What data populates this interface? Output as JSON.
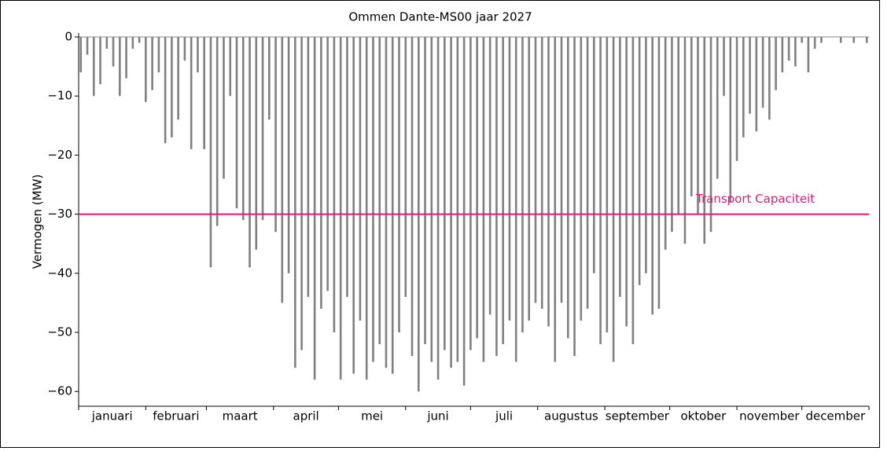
{
  "chart_data": {
    "type": "bar",
    "title": "Ommen Dante-MS00 jaar 2027",
    "y_label": "Vermogen (MW)",
    "color": "#808080",
    "x": [
      1,
      4,
      7,
      10,
      13,
      16,
      19,
      22,
      25,
      28,
      31,
      34,
      37,
      40,
      43,
      46,
      49,
      52,
      55,
      58,
      61,
      64,
      67,
      70,
      73,
      76,
      79,
      82,
      85,
      88,
      91,
      94,
      97,
      100,
      103,
      106,
      109,
      112,
      115,
      118,
      121,
      124,
      127,
      130,
      133,
      136,
      139,
      142,
      145,
      148,
      151,
      154,
      157,
      160,
      163,
      166,
      169,
      172,
      175,
      178,
      181,
      184,
      187,
      190,
      193,
      196,
      199,
      202,
      205,
      208,
      211,
      214,
      217,
      220,
      223,
      226,
      229,
      232,
      235,
      238,
      241,
      244,
      247,
      250,
      253,
      256,
      259,
      262,
      265,
      268,
      271,
      274,
      277,
      280,
      283,
      286,
      289,
      292,
      295,
      298,
      301,
      304,
      307,
      310,
      313,
      316,
      319,
      322,
      325,
      328,
      331,
      334,
      337,
      340,
      343,
      346,
      349,
      352,
      355,
      358,
      361,
      364
    ],
    "values": [
      -6,
      -3,
      -10,
      -8,
      -2,
      -5,
      -10,
      -7,
      -2,
      -1,
      -11,
      -9,
      -6,
      -18,
      -17,
      -14,
      -4,
      -19,
      -6,
      -19,
      -39,
      -32,
      -24,
      -10,
      -29,
      -31,
      -39,
      -36,
      -31,
      -14,
      -33,
      -45,
      -40,
      -56,
      -53,
      -44,
      -58,
      -46,
      -43,
      -50,
      -58,
      -44,
      -57,
      -48,
      -58,
      -55,
      -52,
      -56,
      -57,
      -50,
      -44,
      -54,
      -60,
      -52,
      -55,
      -58,
      -53,
      -56,
      -55,
      -59,
      -53,
      -51,
      -55,
      -47,
      -54,
      -52,
      -48,
      -55,
      -50,
      -48,
      -45,
      -46,
      -49,
      -55,
      -45,
      -51,
      -54,
      -48,
      -46,
      -40,
      -52,
      -50,
      -55,
      -44,
      -49,
      -52,
      -42,
      -40,
      -47,
      -46,
      -36,
      -33,
      -30,
      -35,
      -27,
      -30,
      -35,
      -33,
      -24,
      -10,
      -28,
      -21,
      -17,
      -13,
      -16,
      -12,
      -14,
      -9,
      -6,
      -4,
      -5,
      -1,
      -6,
      -2,
      -1,
      0,
      0,
      -1,
      0,
      -1,
      0,
      -1
    ],
    "xlim": [
      0,
      365
    ],
    "xticks": [
      0,
      31,
      59,
      90,
      120,
      151,
      181,
      212,
      243,
      273,
      304,
      334,
      365
    ],
    "categories": [
      "januari",
      "februari",
      "maart",
      "april",
      "mei",
      "juni",
      "juli",
      "augustus",
      "september",
      "oktober",
      "november",
      "december"
    ],
    "ylim": [
      -62.5,
      0
    ],
    "yticks": [
      {
        "value": 0,
        "label": "0"
      },
      {
        "value": -10,
        "label": "−10"
      },
      {
        "value": -20,
        "label": "−20"
      },
      {
        "value": -30,
        "label": "−30"
      },
      {
        "value": -40,
        "label": "−40"
      },
      {
        "value": -50,
        "label": "−50"
      },
      {
        "value": -60,
        "label": "−60"
      }
    ],
    "hline": {
      "value": -30,
      "label": "Transport Capaciteit",
      "color": "#e0197d"
    }
  }
}
